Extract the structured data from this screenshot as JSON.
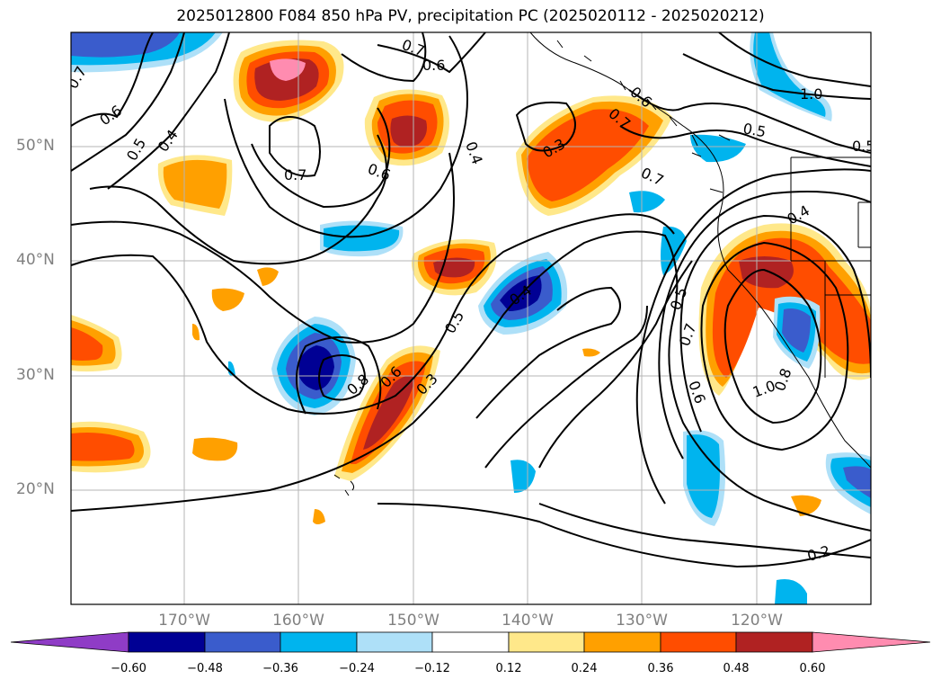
{
  "title": "2025012800 F084 850 hPa PV, precipitation PC (2025020112 - 2025020212)",
  "map": {
    "projection": "cylindrical",
    "lon_range": [
      180,
      -110
    ],
    "lat_range": [
      10,
      60
    ],
    "gridlines": true,
    "lat_labels": [
      "50°N",
      "40°N",
      "30°N",
      "20°N"
    ],
    "lon_labels": [
      "170°W",
      "160°W",
      "150°W",
      "140°W",
      "130°W",
      "120°W"
    ],
    "contour_labels": [
      "0.7",
      "0.6",
      "0.6",
      "0.5",
      "0.4",
      "0.7",
      "0.6",
      "0.4",
      "0.3",
      "0.7",
      "0.5",
      "1.0",
      "0.5",
      "0.4",
      "0.4",
      "0.5",
      "0.8",
      "0.6",
      "0.3",
      "0.5",
      "0.7",
      "0.6",
      "1.0",
      "0.8",
      "0.2",
      "0.7",
      "0.7",
      "0.6"
    ]
  },
  "colorbar": {
    "ticks": [
      "−0.60",
      "−0.48",
      "−0.36",
      "−0.24",
      "−0.12",
      "0.12",
      "0.24",
      "0.36",
      "0.48",
      "0.60"
    ],
    "colors": [
      "#8f3cc6",
      "#000094",
      "#3a5ccc",
      "#00b4ee",
      "#aee0f8",
      "#ffffff",
      "#ffe88a",
      "#ffa000",
      "#ff4d00",
      "#b02222",
      "#ff8cb0"
    ]
  }
}
